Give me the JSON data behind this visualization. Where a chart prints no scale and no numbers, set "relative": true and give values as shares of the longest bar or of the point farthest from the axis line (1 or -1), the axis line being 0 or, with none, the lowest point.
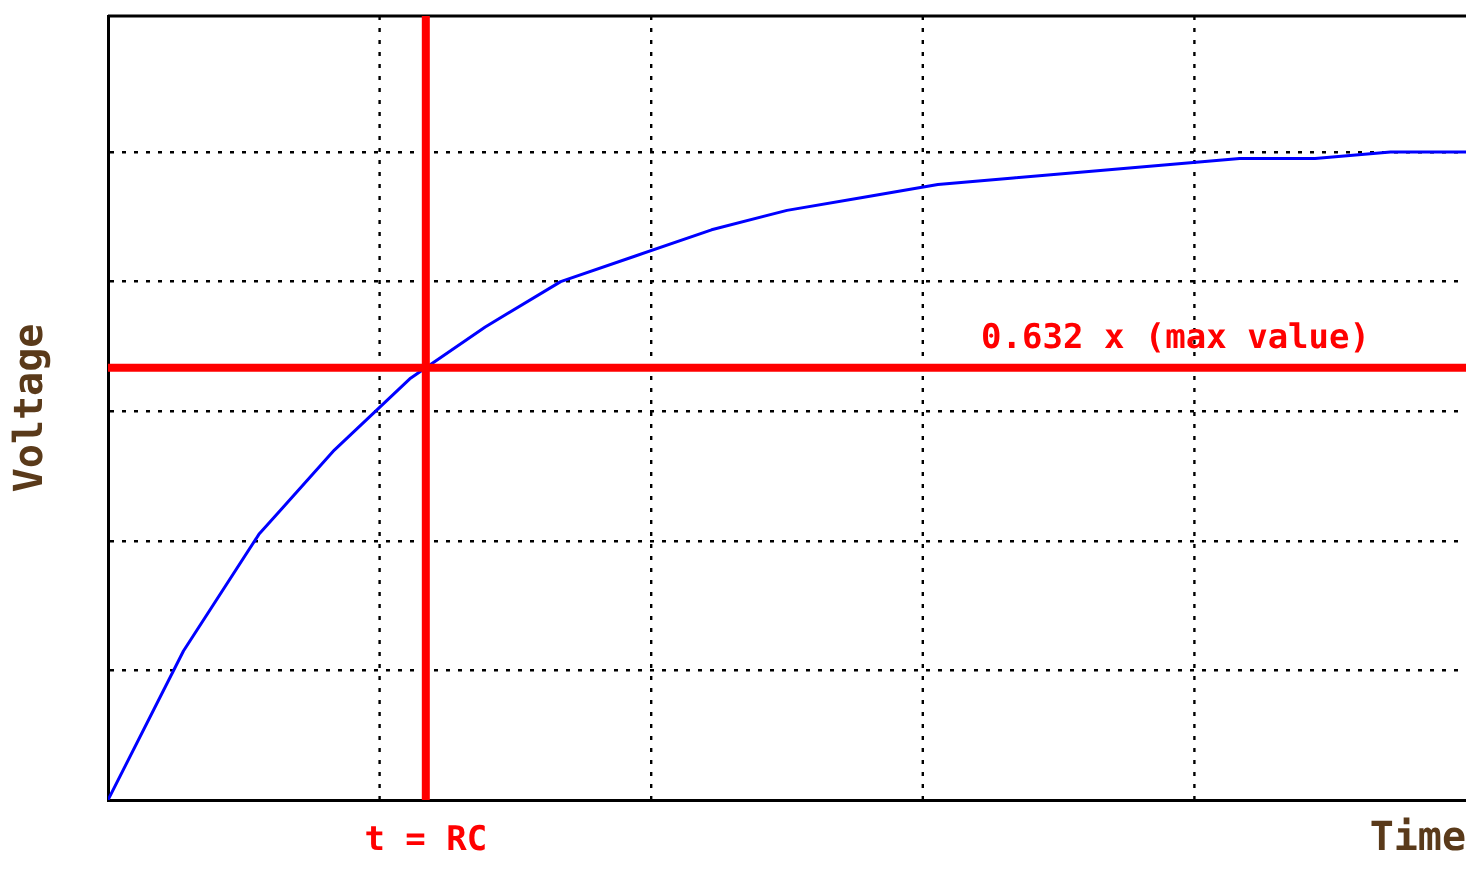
{
  "chart_data": {
    "type": "line",
    "relative": true,
    "xlabel": "Time",
    "ylabel": "Voltage",
    "categories": [
      null,
      null,
      null,
      null,
      null,
      null,
      null,
      null,
      null,
      null,
      null,
      null,
      null,
      null,
      null,
      null,
      null,
      null,
      null
    ],
    "series": [
      {
        "color": "#0000ff",
        "values": [
          0,
          0.23,
          0.41,
          0.54,
          0.65,
          0.73,
          0.8,
          0.84,
          0.88,
          0.91,
          0.93,
          0.95,
          0.96,
          0.97,
          0.98,
          0.99,
          0.99,
          1.0,
          1.0
        ]
      }
    ],
    "ref_lines": [
      {
        "axis": "y",
        "value": 0.667,
        "label": "0.632 x (max value)",
        "color": "#ff0000"
      }
    ],
    "annotations": [
      "t = RC"
    ],
    "grid": true,
    "marker": "none",
    "line_style": "solid",
    "legend": false
  }
}
